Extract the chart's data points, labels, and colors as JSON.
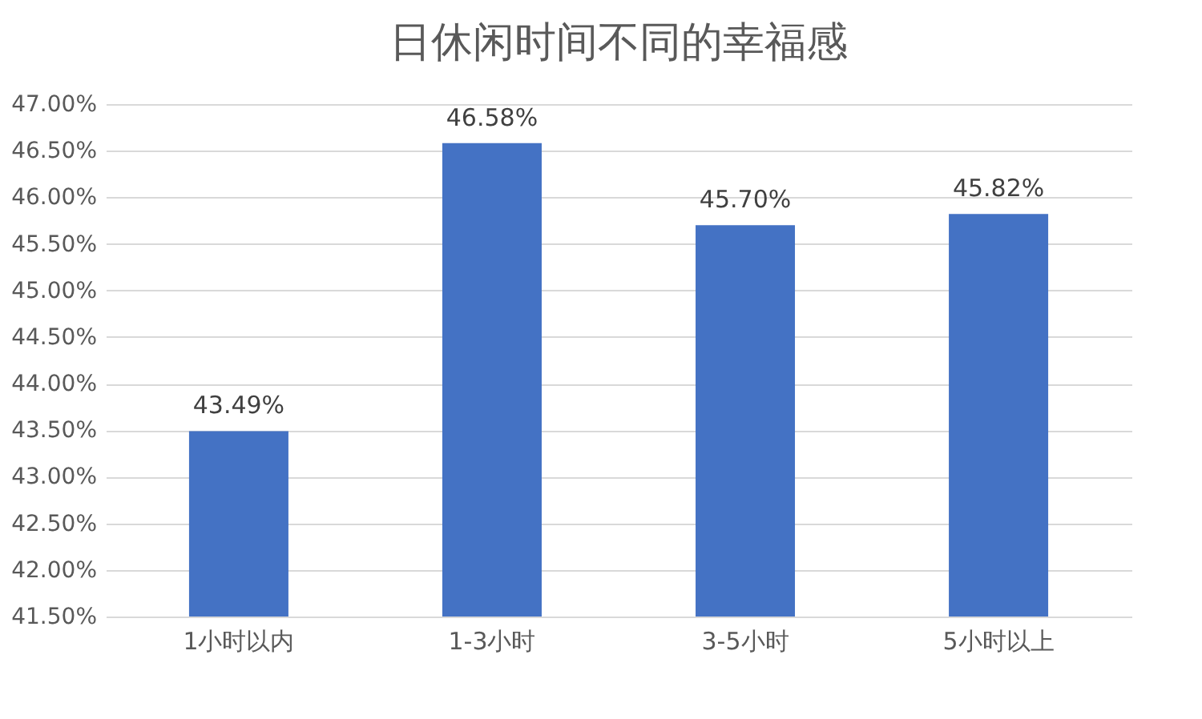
{
  "chart_data": {
    "type": "bar",
    "title": "日休闲时间不同的幸福感",
    "categories": [
      "1小时以内",
      "1-3小时",
      "3-5小时",
      "5小时以上"
    ],
    "values": [
      43.49,
      46.58,
      45.7,
      45.82
    ],
    "value_labels": [
      "43.49%",
      "46.58%",
      "45.70%",
      "45.82%"
    ],
    "color": "#4472c4",
    "ylim": [
      41.5,
      47.0
    ],
    "yticks": [
      {
        "value": 41.5,
        "label": "41.50%"
      },
      {
        "value": 42.0,
        "label": "42.00%"
      },
      {
        "value": 42.5,
        "label": "42.50%"
      },
      {
        "value": 43.0,
        "label": "43.00%"
      },
      {
        "value": 43.5,
        "label": "43.50%"
      },
      {
        "value": 44.0,
        "label": "44.00%"
      },
      {
        "value": 44.5,
        "label": "44.50%"
      },
      {
        "value": 45.0,
        "label": "45.00%"
      },
      {
        "value": 45.5,
        "label": "45.50%"
      },
      {
        "value": 46.0,
        "label": "46.00%"
      },
      {
        "value": 46.5,
        "label": "46.50%"
      },
      {
        "value": 47.0,
        "label": "47.00%"
      }
    ],
    "grid": "y"
  }
}
